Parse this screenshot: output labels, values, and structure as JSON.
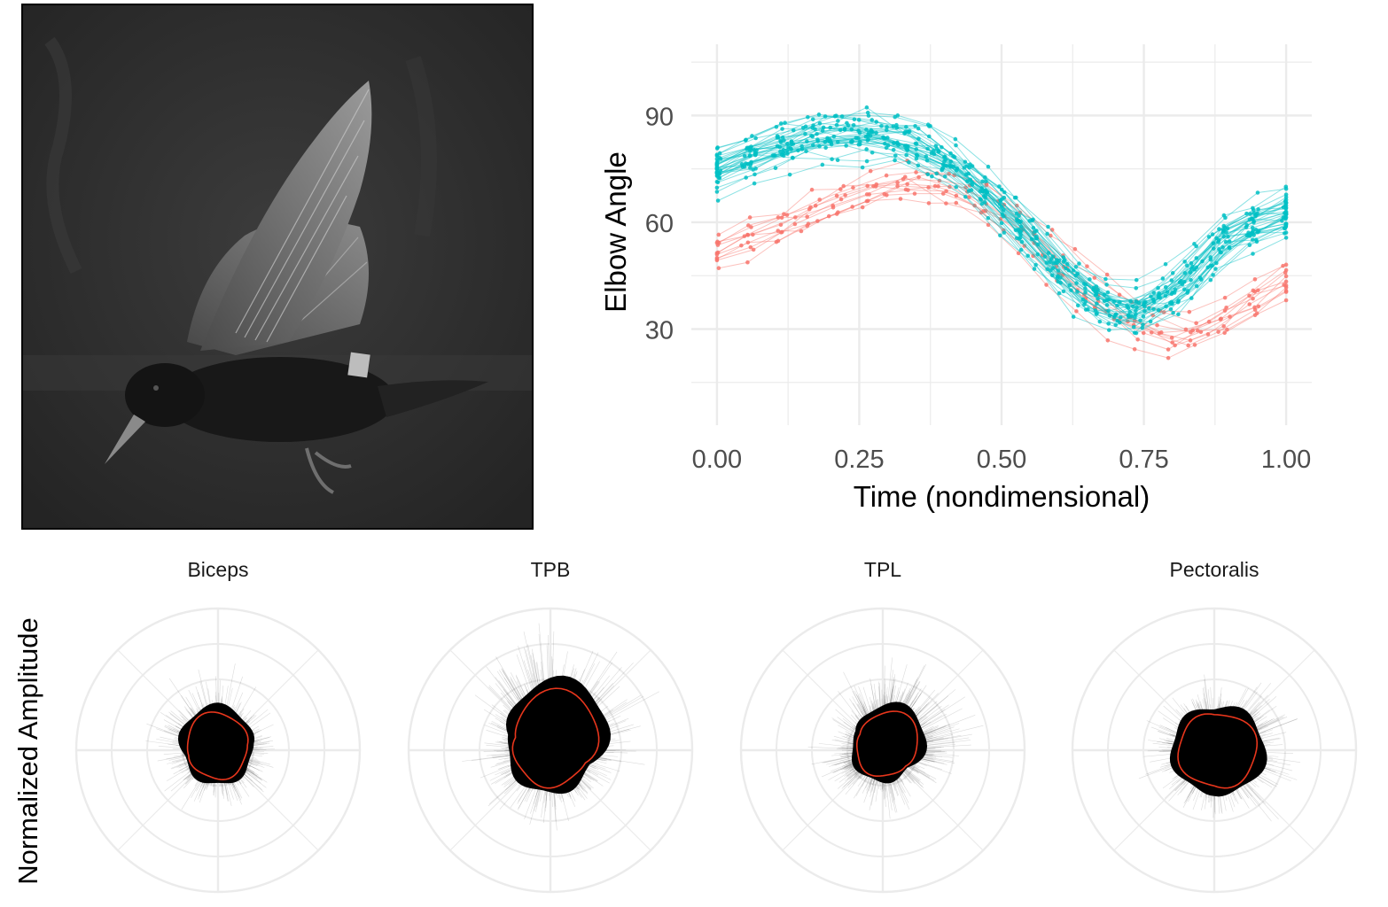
{
  "colors": {
    "series_a": "#00BFC4",
    "series_b": "#F8766D",
    "grid": "#EBEBEB",
    "tick_text": "#4D4D4D",
    "polar_trace": "#000000",
    "polar_mean": "#E8361C",
    "photo_bg": "#2E2E2E"
  },
  "photo": {
    "description_icon": "bird-in-flight-photo-icon"
  },
  "chart_data": [
    {
      "type": "line",
      "title": "",
      "xlabel": "Time (nondimensional)",
      "ylabel": "Elbow Angle",
      "xlim": [
        -0.0,
        1.0
      ],
      "ylim": [
        3,
        110
      ],
      "x_ticks": [
        0.0,
        0.25,
        0.5,
        0.75,
        1.0
      ],
      "x_tick_labels": [
        "0.00",
        "0.25",
        "0.50",
        "0.75",
        "1.00"
      ],
      "y_ticks": [
        30,
        60,
        90
      ],
      "y_tick_labels": [
        "30",
        "60",
        "90"
      ],
      "grid": true,
      "legend": "none",
      "series_groups": [
        {
          "color_key": "series_a",
          "count": 36,
          "mean": [
            74,
            80,
            84,
            85,
            82,
            72,
            58,
            42,
            33,
            40,
            56,
            62
          ],
          "x": [
            0.0,
            0.09,
            0.18,
            0.27,
            0.36,
            0.45,
            0.54,
            0.63,
            0.72,
            0.81,
            0.9,
            1.0
          ]
        },
        {
          "color_key": "series_b",
          "count": 12,
          "mean": [
            52,
            58,
            64,
            70,
            72,
            68,
            58,
            44,
            33,
            28,
            34,
            44
          ],
          "x": [
            0.0,
            0.09,
            0.18,
            0.27,
            0.36,
            0.45,
            0.54,
            0.63,
            0.72,
            0.81,
            0.9,
            1.0
          ]
        }
      ]
    },
    {
      "type": "polar",
      "ylabel": "Normalized Amplitude",
      "facets": [
        {
          "title": "Biceps",
          "mean_radius": 0.24,
          "trace_radius": 0.5,
          "skew_angle": 100,
          "skew": 0.25
        },
        {
          "title": "TPB",
          "mean_radius": 0.3,
          "trace_radius": 0.62,
          "skew_angle": 70,
          "skew": 0.55
        },
        {
          "title": "TPL",
          "mean_radius": 0.22,
          "trace_radius": 0.55,
          "skew_angle": 55,
          "skew": 0.45
        },
        {
          "title": "Pectoralis",
          "mean_radius": 0.3,
          "trace_radius": 0.6,
          "skew_angle": 0,
          "skew": 0.15
        }
      ],
      "rings": 4,
      "spokes": 8
    }
  ]
}
